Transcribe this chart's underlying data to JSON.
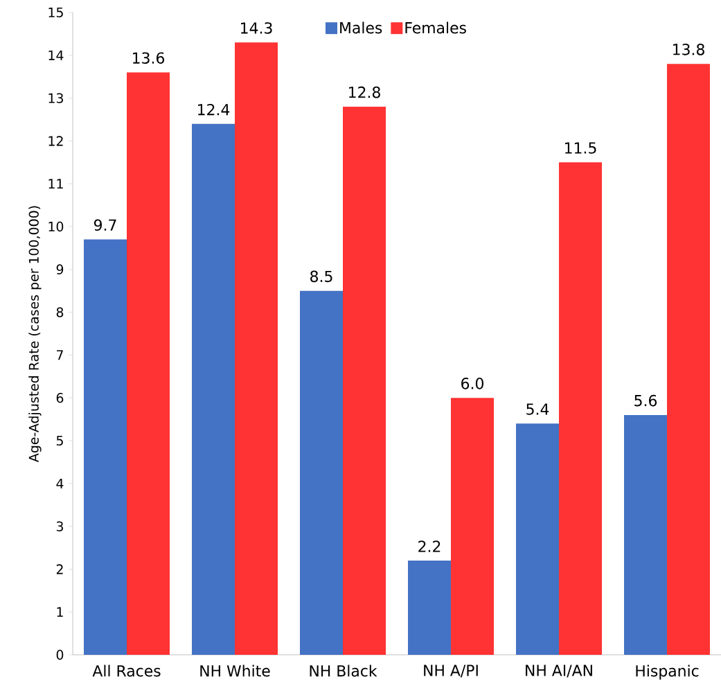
{
  "chart_data": {
    "type": "bar",
    "ylabel": "Age-Adjusted Rate (cases per 100,000)",
    "categories": [
      "All Races",
      "NH White",
      "NH Black",
      "NH A/PI",
      "NH AI/AN",
      "Hispanic"
    ],
    "series": [
      {
        "name": "Males",
        "color": "#4472c4",
        "values": [
          9.7,
          12.4,
          8.5,
          2.2,
          5.4,
          5.6
        ],
        "value_labels": [
          "9.7",
          "12.4",
          "8.5",
          "2.2",
          "5.4",
          "5.6"
        ]
      },
      {
        "name": "Females",
        "color": "#ff3333",
        "values": [
          13.6,
          14.3,
          12.8,
          6.0,
          11.5,
          13.8
        ],
        "value_labels": [
          "13.6",
          "14.3",
          "12.8",
          "6.0",
          "11.5",
          "13.8"
        ]
      }
    ],
    "ylim": [
      0,
      15
    ],
    "yticks": [
      0,
      1,
      2,
      3,
      4,
      5,
      6,
      7,
      8,
      9,
      10,
      11,
      12,
      13,
      14,
      15
    ],
    "grid": false,
    "legend": "top"
  }
}
